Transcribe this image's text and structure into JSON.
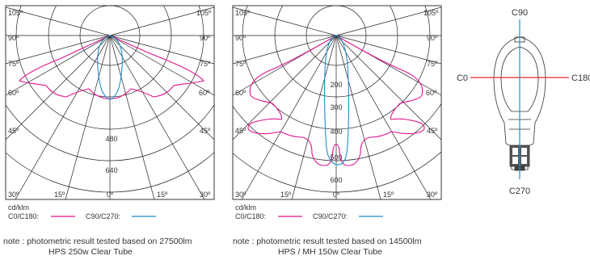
{
  "colors": {
    "c0_c180": "#e0148c",
    "c90_c270": "#1f8fc8",
    "grid": "#222222",
    "red_axis": "#e8242b"
  },
  "unit_label": "cd/klm",
  "legend": {
    "c0_c180": "C0/C180:",
    "c90_c270": "C90/C270:"
  },
  "charts": [
    {
      "angle_labels_left": [
        "105º",
        "90º",
        "75º",
        "60º",
        "45º",
        "30º",
        "15º"
      ],
      "angle_labels_right": [
        "105º",
        "90º",
        "75º",
        "60º",
        "45º",
        "30º",
        "15º"
      ],
      "center_label": "0º",
      "ring_labels": [
        "480",
        "640"
      ],
      "note_line1": "note : photometric result tested based on 27500lm",
      "note_line2": "HPS 250w Clear Tube"
    },
    {
      "angle_labels_left": [
        "105º",
        "90º",
        "75º",
        "60º",
        "45º",
        "30º",
        "15º"
      ],
      "angle_labels_right": [
        "105º",
        "90º",
        "75º",
        "60º",
        "45º",
        "30º",
        "15º"
      ],
      "center_label": "0º",
      "ring_labels": [
        "200",
        "300",
        "400",
        "500",
        "600"
      ],
      "note_line1": "note : photometric result tested based on 14500lm",
      "note_line2": "HPS / MH 150w Clear Tube"
    }
  ],
  "lamp": {
    "label_top": "C90",
    "label_left": "C0",
    "label_right": "C180",
    "label_bottom": "C270"
  }
}
